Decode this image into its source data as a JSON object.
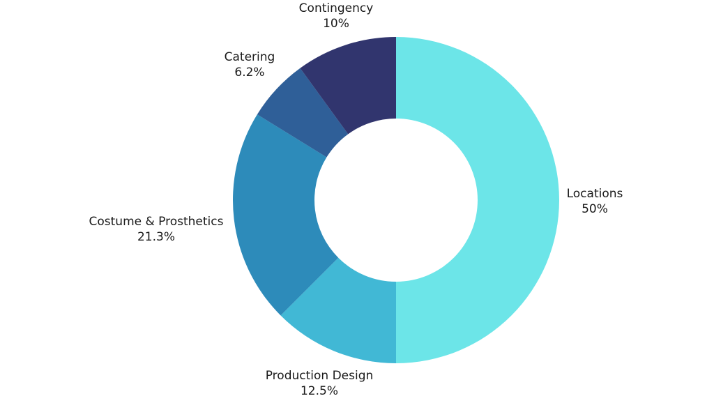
{
  "chart_data": {
    "type": "pie",
    "style": "donut",
    "title": "",
    "start_angle": "12 o'clock, clockwise",
    "slices": [
      {
        "label": "Locations",
        "value": 50,
        "value_label": "50%",
        "color": "#6CE5E8"
      },
      {
        "label": "Production Design",
        "value": 12.5,
        "value_label": "12.5%",
        "color": "#41B8D5"
      },
      {
        "label": "Costume & Prosthetics",
        "value": 21.3,
        "value_label": "21.3%",
        "color": "#2D8BBA"
      },
      {
        "label": "Catering",
        "value": 6.2,
        "value_label": "6.2%",
        "color": "#2F5F98"
      },
      {
        "label": "Contingency",
        "value": 10,
        "value_label": "10%",
        "color": "#31356E"
      }
    ]
  }
}
